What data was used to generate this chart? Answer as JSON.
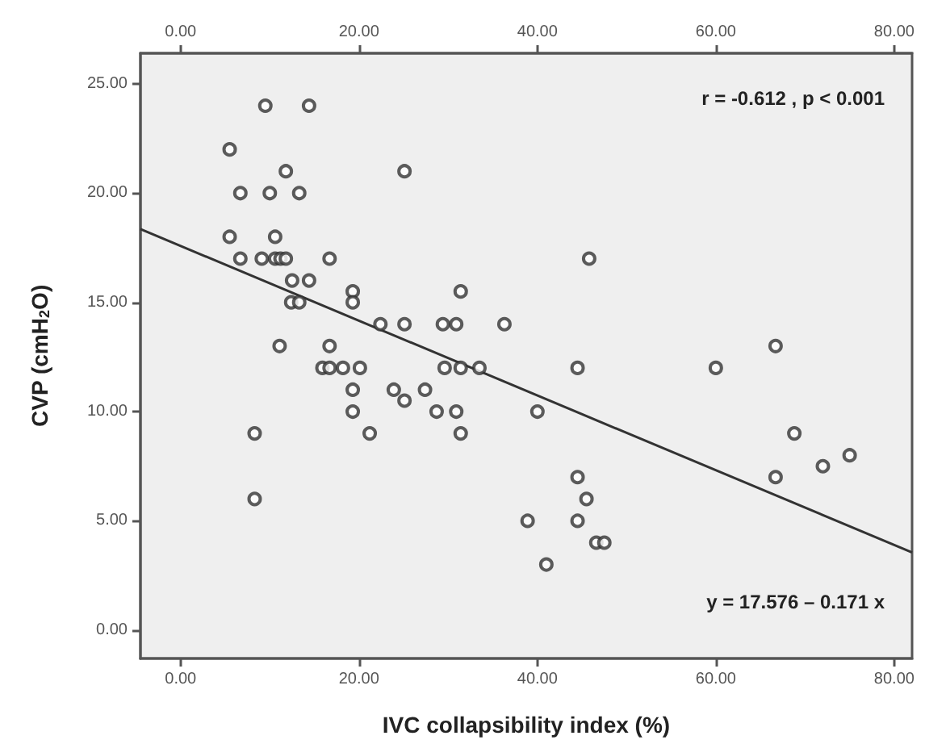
{
  "chart_data": {
    "type": "scatter",
    "xlabel": "IVC collapsibility index (%)",
    "ylabel": "CVP (cmH$_{2}$O)",
    "annotations": [
      "r = -0.612 , p < 0.001",
      "y = 17.576 – 0.171 x"
    ],
    "xlim": [
      -4.5,
      82
    ],
    "xticks": [
      {
        "value": 0,
        "label": "0.00"
      },
      {
        "value": 20,
        "label": "20.00"
      },
      {
        "value": 40,
        "label": "40.00"
      },
      {
        "value": 60,
        "label": "60.00"
      },
      {
        "value": 80,
        "label": "80.00"
      }
    ],
    "x2lim": [
      -4.5,
      82
    ],
    "x2ticks": [
      {
        "value": 0,
        "label": "0.00"
      },
      {
        "value": 20,
        "label": "20.00"
      },
      {
        "value": 40,
        "label": "40.00"
      },
      {
        "value": 60,
        "label": "60.00"
      },
      {
        "value": 80,
        "label": "80.00"
      }
    ],
    "ylim": [
      -1.3,
      26.4
    ],
    "yticks": [
      {
        "value": 0,
        "label": "0.00"
      },
      {
        "value": 5,
        "label": "5.00"
      },
      {
        "value": 10,
        "label": "10.00"
      },
      {
        "value": 15,
        "label": "15.00"
      },
      {
        "value": 20,
        "label": "20.00"
      },
      {
        "value": 25,
        "label": "25.00"
      }
    ],
    "grid": false,
    "marker": "circle",
    "series": [
      {
        "color": "#333333",
        "x": [
          9.5,
          14.4,
          5.5,
          11.8,
          25.1,
          6.7,
          10,
          13.3,
          5.5,
          10.6,
          6.7,
          9.1,
          10.6,
          11.2,
          11.8,
          16.7,
          12.5,
          14.4,
          12.4,
          13.3,
          19.3,
          19.3,
          22.4,
          25.1,
          29.4,
          30.9,
          31.4,
          36.3,
          11.1,
          16.7,
          15.9,
          16.7,
          18.2,
          20.1,
          29.6,
          31.4,
          33.5,
          19.3,
          23.9,
          27.4,
          25.1,
          19.3,
          28.7,
          30.9,
          21.2,
          31.4,
          8.3,
          8.3,
          44.5,
          60,
          66.7,
          40,
          68.8,
          72,
          75,
          66.7,
          44.5,
          45.5,
          38.9,
          44.5,
          46.6,
          47.5,
          41,
          45.8
        ],
        "values": [
          24,
          24,
          22,
          21,
          21,
          20,
          20,
          20,
          18,
          18,
          17,
          17,
          17,
          17,
          17,
          17,
          16,
          16,
          15,
          15,
          15.5,
          15,
          14,
          14,
          14,
          14,
          15.5,
          14,
          13,
          13,
          12,
          12,
          12,
          12,
          12,
          12,
          12,
          11,
          11,
          11,
          10.5,
          10,
          10,
          10,
          9,
          9,
          9,
          6,
          12,
          12,
          13,
          10,
          9,
          7.5,
          8,
          7,
          7,
          6,
          5,
          5,
          4,
          4,
          3,
          17
        ]
      },
      {
        "type": "line",
        "color": "#333333",
        "marker": "none",
        "line_style": "solid",
        "x": [
          -4.5,
          82
        ],
        "values": [
          18.35,
          3.55
        ]
      }
    ]
  }
}
